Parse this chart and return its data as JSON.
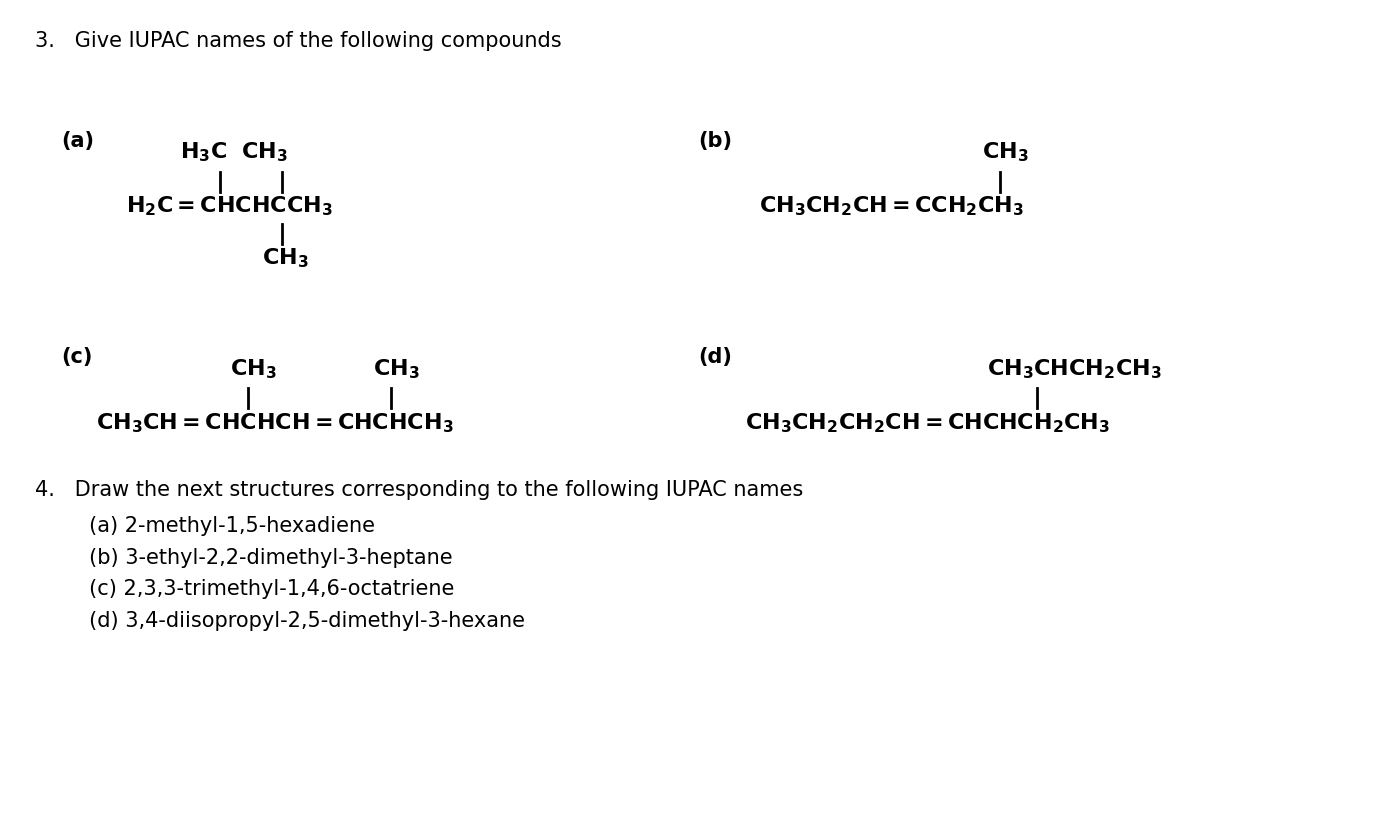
{
  "background_color": "#ffffff",
  "fig_width": 13.9,
  "fig_height": 8.36,
  "title_3": "3.   Give IUPAC names of the following compounds",
  "title_4": "4.   Draw the next structures corresponding to the following IUPAC names",
  "items_4": [
    "     (a) 2-methyl-1,5-hexadiene",
    "     (b) 3-ethyl-2,2-dimethyl-3-heptane",
    "     (c) 2,3,3-trimethyl-1,4,6-octatriene",
    "     (d) 3,4-diisopropyl-2,5-dimethyl-3-hexane"
  ],
  "label_a": "(a)",
  "label_b": "(b)",
  "label_c": "(c)",
  "label_d": "(d)"
}
